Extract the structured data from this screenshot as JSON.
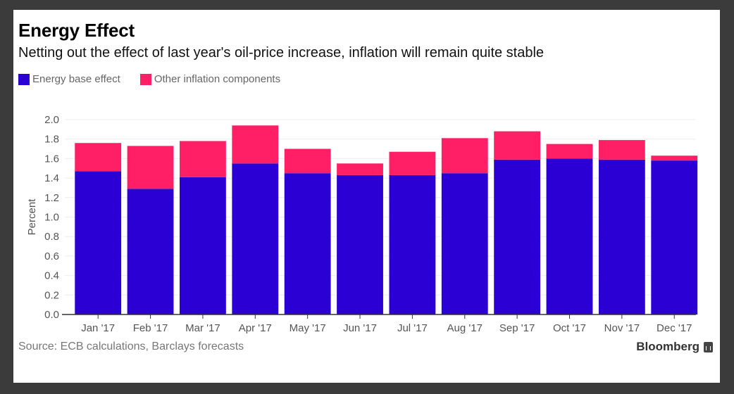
{
  "header": {
    "title": "Energy Effect",
    "subtitle": "Netting out the effect of last year's oil-price increase, inflation will remain quite stable"
  },
  "footer": {
    "source": "Source: ECB calculations, Barclays forecasts",
    "brand": "Bloomberg",
    "brand_icon": "bloomberg-chart-icon"
  },
  "chart_data": {
    "type": "bar",
    "stacked": true,
    "title": "Energy Effect",
    "subtitle": "Netting out the effect of last year's oil-price increase, inflation will remain quite stable",
    "xlabel": "",
    "ylabel": "Percent",
    "ylim": [
      0,
      2.0
    ],
    "yticks": [
      "0.0",
      "0.2",
      "0.4",
      "0.6",
      "0.8",
      "1.0",
      "1.2",
      "1.4",
      "1.6",
      "1.8",
      "2.0"
    ],
    "grid": true,
    "legend_position": "top-left",
    "categories": [
      "Jan '17",
      "Feb '17",
      "Mar '17",
      "Apr '17",
      "May '17",
      "Jun '17",
      "Jul '17",
      "Aug '17",
      "Sep '17",
      "Oct '17",
      "Nov '17",
      "Dec '17"
    ],
    "series": [
      {
        "name": "Energy base effect",
        "color": "#2a00d4",
        "values": [
          1.47,
          1.29,
          1.41,
          1.55,
          1.45,
          1.43,
          1.43,
          1.45,
          1.59,
          1.6,
          1.59,
          1.58
        ]
      },
      {
        "name": "Other inflation components",
        "color": "#ff1f66",
        "values": [
          0.29,
          0.44,
          0.37,
          0.39,
          0.25,
          0.12,
          0.24,
          0.36,
          0.29,
          0.15,
          0.2,
          0.05
        ]
      }
    ]
  }
}
